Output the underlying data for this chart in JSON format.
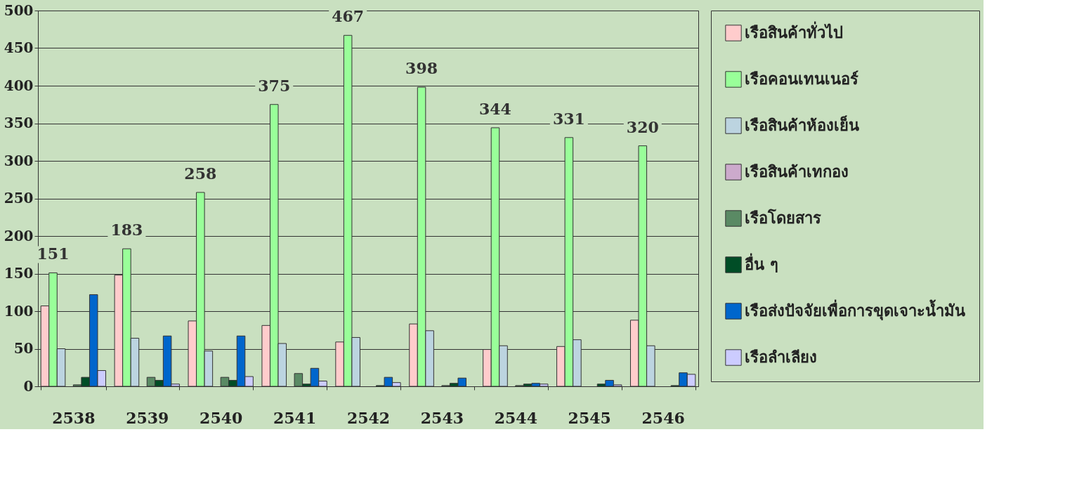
{
  "chart_data": {
    "type": "bar",
    "categories": [
      "2538",
      "2539",
      "2540",
      "2541",
      "2542",
      "2543",
      "2544",
      "2545",
      "2546"
    ],
    "series": [
      {
        "name": "เรือสินค้าทั่วไป",
        "color": "#ffcccc",
        "values": [
          107,
          148,
          87,
          81,
          59,
          83,
          49,
          53,
          88
        ]
      },
      {
        "name": "เรือคอนเทนเนอร์",
        "color": "#99ff99",
        "values": [
          151,
          183,
          258,
          375,
          467,
          398,
          344,
          331,
          320
        ],
        "value_labels": [
          "151",
          "183",
          "258",
          "375",
          "467",
          "398",
          "344",
          "331",
          "320"
        ]
      },
      {
        "name": "เรือสินค้าห้องเย็น",
        "color": "#bcd4e0",
        "values": [
          50,
          64,
          47,
          57,
          65,
          74,
          54,
          62,
          54
        ]
      },
      {
        "name": "เรือสินค้าเทกอง",
        "color": "#ccaacc",
        "values": [
          null,
          null,
          null,
          null,
          null,
          null,
          null,
          null,
          null
        ]
      },
      {
        "name": "เรือโดยสาร",
        "color": "#5a8a64",
        "values": [
          2,
          12,
          12,
          17,
          null,
          1,
          1,
          null,
          null
        ]
      },
      {
        "name": "อื่น ๆ",
        "color": "#004d26",
        "values": [
          12,
          8,
          8,
          3,
          1,
          4,
          3,
          3,
          1
        ]
      },
      {
        "name": "เรือส่งปัจจัยเพื่อการขุดเจาะน้ำมัน",
        "color": "#0066cc",
        "values": [
          122,
          67,
          67,
          24,
          12,
          11,
          4,
          8,
          18
        ]
      },
      {
        "name": "เรือลำเลียง",
        "color": "#ccccff",
        "values": [
          21,
          3,
          13,
          7,
          5,
          null,
          3,
          2,
          16
        ]
      }
    ],
    "ylim": [
      0,
      500
    ],
    "yticks": [
      0,
      50,
      100,
      150,
      200,
      250,
      300,
      350,
      400,
      450,
      500
    ],
    "grid": "y",
    "legend": "right"
  }
}
